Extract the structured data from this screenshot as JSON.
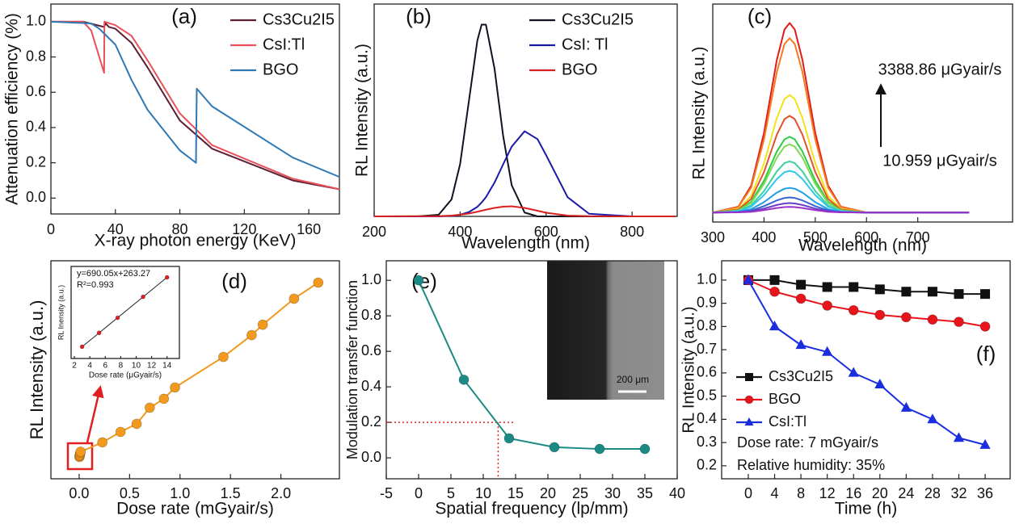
{
  "chart_data": [
    {
      "type": "line",
      "panel_label": "(a)",
      "xlabel": "X-ray photon energy (KeV)",
      "ylabel": "Attenuation efficiency (%)",
      "xlim": [
        0,
        179
      ],
      "ylim": [
        -0.09,
        1.1
      ],
      "xticks": [
        0,
        40,
        80,
        120,
        160
      ],
      "yticks": [
        {
          "value": 0,
          "label": "0.0"
        },
        {
          "value": 0.2,
          "label": "0.2"
        },
        {
          "value": 0.4,
          "label": "0.4"
        },
        {
          "value": 0.6,
          "label": "0.6"
        },
        {
          "value": 0.8,
          "label": "0.8"
        },
        {
          "value": 1,
          "label": "1.0"
        }
      ],
      "legend": "upper right",
      "series": [
        {
          "name": "Cs3Cu2I5",
          "color": "#5c1f35",
          "x": [
            0,
            20,
            33,
            34,
            36,
            40,
            50,
            60,
            80,
            100,
            150,
            179
          ],
          "values": [
            1,
            1,
            0.97,
            0.99,
            0.97,
            0.96,
            0.88,
            0.74,
            0.44,
            0.28,
            0.1,
            0.05
          ]
        },
        {
          "name": "CsI:Tl",
          "color": "#e8505a",
          "x": [
            0,
            20,
            25,
            33,
            33.2,
            40,
            50,
            60,
            80,
            100,
            150,
            179
          ],
          "values": [
            1,
            1,
            0.95,
            0.71,
            1,
            0.98,
            0.92,
            0.78,
            0.48,
            0.3,
            0.11,
            0.05
          ]
        },
        {
          "name": "BGO",
          "color": "#2e78b4",
          "x": [
            0,
            25,
            30,
            40,
            50,
            60,
            80,
            90,
            90.5,
            100,
            150,
            179
          ],
          "values": [
            1,
            0.99,
            0.96,
            0.87,
            0.67,
            0.5,
            0.27,
            0.2,
            0.62,
            0.52,
            0.23,
            0.12
          ]
        }
      ]
    },
    {
      "type": "line",
      "panel_label": "(b)",
      "xlabel": "Wavelength (nm)",
      "ylabel": "RL Intensity (a.u.)",
      "xlim": [
        200,
        905
      ],
      "ylim": [
        0,
        1.05
      ],
      "xticks": [
        200,
        400,
        600,
        800
      ],
      "legend": "upper right",
      "x": [
        200,
        300,
        350,
        380,
        400,
        420,
        440,
        450,
        460,
        480,
        500,
        520,
        550,
        580,
        600,
        650,
        700,
        800,
        900
      ],
      "series": [
        {
          "name": "Cs3Cu2I5",
          "color": "#111122",
          "values": [
            0,
            0,
            0.008,
            0.084,
            0.259,
            0.564,
            0.869,
            0.948,
            0.948,
            0.731,
            0.399,
            0.154,
            0.019,
            0,
            0,
            0,
            0,
            0,
            0
          ]
        },
        {
          "name": "CsI: Tl",
          "color": "#1a1aa8",
          "values": [
            0,
            0,
            0,
            0.003,
            0.008,
            0.021,
            0.047,
            0.069,
            0.095,
            0.167,
            0.257,
            0.345,
            0.421,
            0.382,
            0.303,
            0.095,
            0.013,
            0,
            0
          ]
        },
        {
          "name": "BGO",
          "color": "#d92020",
          "values": [
            0,
            0.001,
            0.001,
            0.004,
            0.008,
            0.014,
            0.023,
            0.028,
            0.033,
            0.042,
            0.048,
            0.05,
            0.042,
            0.028,
            0.018,
            0.004,
            0.001,
            0,
            0
          ]
        }
      ]
    },
    {
      "type": "line",
      "panel_label": "(c)",
      "xlabel": "Wavelength (nm)",
      "ylabel": "RL Intensity (a.u.)",
      "xlim": [
        300,
        885
      ],
      "ylim": [
        -0.05,
        1.1
      ],
      "xticks": [
        300,
        400,
        500,
        600,
        700
      ],
      "annotations": [
        "3388.86  μGyair/s",
        "10.959 μGyair/s"
      ],
      "x": [
        300,
        350,
        375,
        400,
        425,
        440,
        450,
        460,
        475,
        500,
        525,
        550,
        600,
        800
      ],
      "series": [
        {
          "color": "#e31a1c",
          "values": [
            0,
            0.031,
            0.142,
            0.42,
            0.805,
            0.966,
            1,
            0.966,
            0.805,
            0.42,
            0.142,
            0.031,
            0,
            0
          ]
        },
        {
          "color": "#f47c20",
          "values": [
            0,
            0.029,
            0.131,
            0.386,
            0.741,
            0.889,
            0.92,
            0.889,
            0.741,
            0.386,
            0.131,
            0.029,
            0,
            0
          ]
        },
        {
          "color": "#f2e21b",
          "values": [
            0,
            0.019,
            0.088,
            0.26,
            0.499,
            0.599,
            0.62,
            0.599,
            0.499,
            0.26,
            0.088,
            0.019,
            0,
            0
          ]
        },
        {
          "color": "#e5502c",
          "values": [
            0,
            0.016,
            0.072,
            0.214,
            0.411,
            0.493,
            0.51,
            0.493,
            0.411,
            0.214,
            0.072,
            0.016,
            0,
            0
          ]
        },
        {
          "color": "#2ecc40",
          "values": [
            0,
            0.012,
            0.057,
            0.168,
            0.322,
            0.386,
            0.4,
            0.386,
            0.322,
            0.168,
            0.057,
            0.012,
            0,
            0
          ]
        },
        {
          "color": "#7ed957",
          "values": [
            0,
            0.011,
            0.051,
            0.151,
            0.29,
            0.348,
            0.36,
            0.348,
            0.29,
            0.151,
            0.051,
            0.011,
            0,
            0
          ]
        },
        {
          "color": "#3fd0a0",
          "values": [
            0,
            0.008,
            0.038,
            0.113,
            0.217,
            0.261,
            0.27,
            0.261,
            0.217,
            0.113,
            0.038,
            0.008,
            0,
            0
          ]
        },
        {
          "color": "#33c7e6",
          "values": [
            0,
            0.007,
            0.031,
            0.092,
            0.177,
            0.213,
            0.22,
            0.213,
            0.177,
            0.092,
            0.031,
            0.007,
            0,
            0
          ]
        },
        {
          "color": "#1f9ee6",
          "values": [
            0,
            0.004,
            0.018,
            0.055,
            0.105,
            0.126,
            0.13,
            0.126,
            0.105,
            0.055,
            0.018,
            0.004,
            0,
            0
          ]
        },
        {
          "color": "#3463d6",
          "values": [
            0,
            0.002,
            0.011,
            0.034,
            0.064,
            0.077,
            0.08,
            0.077,
            0.064,
            0.034,
            0.011,
            0.002,
            0,
            0
          ]
        },
        {
          "color": "#6a3fc8",
          "values": [
            0,
            0.002,
            0.007,
            0.021,
            0.04,
            0.048,
            0.05,
            0.048,
            0.04,
            0.021,
            0.007,
            0.002,
            0,
            0
          ]
        },
        {
          "color": "#9b30c8",
          "values": [
            0,
            0.001,
            0.004,
            0.013,
            0.024,
            0.029,
            0.03,
            0.029,
            0.024,
            0.013,
            0.004,
            0.001,
            0,
            0
          ]
        }
      ]
    },
    {
      "type": "line",
      "panel_label": "(d)",
      "xlabel": "Dose rate (mGyair/s)",
      "ylabel": "RL Intensity (a.u.)",
      "xlim": [
        -0.28,
        2.58
      ],
      "ylim": [
        0,
        100
      ],
      "xticks": [
        {
          "value": 0,
          "label": "0.0"
        },
        {
          "value": 0.5,
          "label": "0.5"
        },
        {
          "value": 1,
          "label": "1.0"
        },
        {
          "value": 1.5,
          "label": "1.5"
        },
        {
          "value": 2,
          "label": "2.0"
        }
      ],
      "color": "#f39a1e",
      "marker": "circle",
      "x": [
        0.003,
        0.005,
        0.007,
        0.011,
        0.014,
        0.23,
        0.41,
        0.57,
        0.7,
        0.84,
        0.95,
        1.43,
        1.71,
        1.82,
        2.13,
        2.37
      ],
      "values": [
        10,
        10.5,
        11,
        11.8,
        12.4,
        16.7,
        21.5,
        25.2,
        32.6,
        36.7,
        41.9,
        55.9,
        65.9,
        70.7,
        82.6,
        90
      ]
    },
    {
      "type": "scatter",
      "xlabel": "Dose rate (μGyair/s)",
      "ylabel": "RL Inensity (a.u.)",
      "xlim": [
        1.58,
        15.6
      ],
      "ylim": [
        1050,
        11120
      ],
      "xticks": [
        2,
        4,
        6,
        8,
        10,
        12,
        14
      ],
      "annotations": [
        "y=690.05x+263.27",
        "R²=0.993"
      ],
      "color": "#e02020",
      "line": true,
      "x": [
        3,
        5.2,
        7.6,
        10.9,
        14
      ],
      "values": [
        2333,
        3850,
        5500,
        7800,
        9924
      ]
    },
    {
      "type": "line",
      "panel_label": "(e)",
      "xlabel": "Spatial frequency (lp/mm)",
      "ylabel": "Modulation transfer function",
      "xlim": [
        -5,
        40
      ],
      "ylim": [
        -0.118,
        1.11
      ],
      "xticks": [
        -5,
        0,
        5,
        10,
        15,
        20,
        25,
        30,
        35,
        40
      ],
      "yticks": [
        {
          "value": 0,
          "label": "0.0"
        },
        {
          "value": 0.2,
          "label": "0.2"
        },
        {
          "value": 0.4,
          "label": "0.4"
        },
        {
          "value": 0.6,
          "label": "0.6"
        },
        {
          "value": 0.8,
          "label": "0.8"
        },
        {
          "value": 1,
          "label": "1.0"
        }
      ],
      "annotations": [
        "200 μm"
      ],
      "guide": {
        "x": 12.3,
        "y": 0.2
      },
      "color": "#1a8a85",
      "marker": "circle",
      "x": [
        0,
        7,
        14,
        21,
        28,
        35
      ],
      "values": [
        1,
        0.44,
        0.11,
        0.06,
        0.05,
        0.05
      ]
    },
    {
      "type": "line",
      "panel_label": "(f)",
      "xlabel": "Time (h)",
      "ylabel": "RL Intensity (a.u.)",
      "xlim": [
        -4.05,
        39.8
      ],
      "ylim": [
        0.144,
        1.083
      ],
      "xticks": [
        0,
        4,
        8,
        12,
        16,
        20,
        24,
        28,
        32,
        36
      ],
      "yticks": [
        {
          "value": 0.2,
          "label": "0.2"
        },
        {
          "value": 0.3,
          "label": "0.3"
        },
        {
          "value": 0.4,
          "label": "0.4"
        },
        {
          "value": 0.5,
          "label": "0.5"
        },
        {
          "value": 0.6,
          "label": "0.6"
        },
        {
          "value": 0.7,
          "label": "0.7"
        },
        {
          "value": 0.8,
          "label": "0.8"
        },
        {
          "value": 0.9,
          "label": "0.9"
        },
        {
          "value": 1,
          "label": "1.0"
        }
      ],
      "legend": "lower left",
      "annotations": [
        "Dose rate: 7 mGyair/s",
        "Relative humidity: 35%"
      ],
      "x": [
        0,
        4,
        8,
        12,
        16,
        20,
        24,
        28,
        32,
        36
      ],
      "series": [
        {
          "name": "Cs3Cu2I5",
          "color": "#111111",
          "marker": "square",
          "values": [
            1,
            1,
            0.98,
            0.97,
            0.97,
            0.96,
            0.95,
            0.95,
            0.94,
            0.94
          ]
        },
        {
          "name": "BGO",
          "color": "#e8141c",
          "marker": "circle",
          "values": [
            1,
            0.95,
            0.92,
            0.89,
            0.87,
            0.85,
            0.84,
            0.83,
            0.82,
            0.8
          ]
        },
        {
          "name": "CsI:Tl",
          "color": "#1a2ee0",
          "marker": "triangle",
          "values": [
            1,
            0.8,
            0.72,
            0.69,
            0.6,
            0.55,
            0.45,
            0.4,
            0.32,
            0.29
          ]
        }
      ]
    }
  ]
}
